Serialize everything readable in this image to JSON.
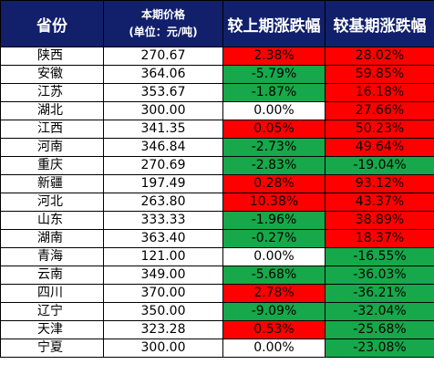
{
  "headers": {
    "province": "省份",
    "price_line1": "本期价格",
    "price_line2": "(单位：元/吨)",
    "mom": "较上期涨跌幅",
    "yoy": "较基期涨跌幅"
  },
  "colors": {
    "header_bg": "#12206b",
    "up": "#ff0000",
    "down": "#16a84a",
    "flat": "#ffffff"
  },
  "rows": [
    {
      "province": "陕西",
      "price": "270.67",
      "mom": "2.38%",
      "mom_color": "red",
      "yoy": "28.02%",
      "yoy_color": "red"
    },
    {
      "province": "安徽",
      "price": "364.06",
      "mom": "-5.79%",
      "mom_color": "green",
      "yoy": "59.85%",
      "yoy_color": "red"
    },
    {
      "province": "江苏",
      "price": "353.67",
      "mom": "-1.87%",
      "mom_color": "green",
      "yoy": "16.18%",
      "yoy_color": "red"
    },
    {
      "province": "湖北",
      "price": "300.00",
      "mom": "0.00%",
      "mom_color": "white",
      "yoy": "27.66%",
      "yoy_color": "red"
    },
    {
      "province": "江西",
      "price": "341.35",
      "mom": "0.05%",
      "mom_color": "red",
      "yoy": "50.23%",
      "yoy_color": "red"
    },
    {
      "province": "河南",
      "price": "346.84",
      "mom": "-2.73%",
      "mom_color": "green",
      "yoy": "49.64%",
      "yoy_color": "red"
    },
    {
      "province": "重庆",
      "price": "270.69",
      "mom": "-2.83%",
      "mom_color": "green",
      "yoy": "-19.04%",
      "yoy_color": "green"
    },
    {
      "province": "新疆",
      "price": "197.49",
      "mom": "0.28%",
      "mom_color": "red",
      "yoy": "93.12%",
      "yoy_color": "red"
    },
    {
      "province": "河北",
      "price": "263.80",
      "mom": "10.38%",
      "mom_color": "red",
      "yoy": "43.37%",
      "yoy_color": "red"
    },
    {
      "province": "山东",
      "price": "333.33",
      "mom": "-1.96%",
      "mom_color": "green",
      "yoy": "38.89%",
      "yoy_color": "red"
    },
    {
      "province": "湖南",
      "price": "363.40",
      "mom": "-0.27%",
      "mom_color": "green",
      "yoy": "18.37%",
      "yoy_color": "red"
    },
    {
      "province": "青海",
      "price": "121.00",
      "mom": "0.00%",
      "mom_color": "white",
      "yoy": "-16.55%",
      "yoy_color": "green"
    },
    {
      "province": "云南",
      "price": "349.00",
      "mom": "-5.68%",
      "mom_color": "green",
      "yoy": "-36.03%",
      "yoy_color": "green"
    },
    {
      "province": "四川",
      "price": "370.00",
      "mom": "2.78%",
      "mom_color": "red",
      "yoy": "-36.21%",
      "yoy_color": "green"
    },
    {
      "province": "辽宁",
      "price": "350.00",
      "mom": "-9.09%",
      "mom_color": "green",
      "yoy": "-32.04%",
      "yoy_color": "green"
    },
    {
      "province": "天津",
      "price": "323.28",
      "mom": "0.53%",
      "mom_color": "red",
      "yoy": "-25.68%",
      "yoy_color": "green"
    },
    {
      "province": "宁夏",
      "price": "300.00",
      "mom": "0.00%",
      "mom_color": "white",
      "yoy": "-23.08%",
      "yoy_color": "green"
    }
  ]
}
